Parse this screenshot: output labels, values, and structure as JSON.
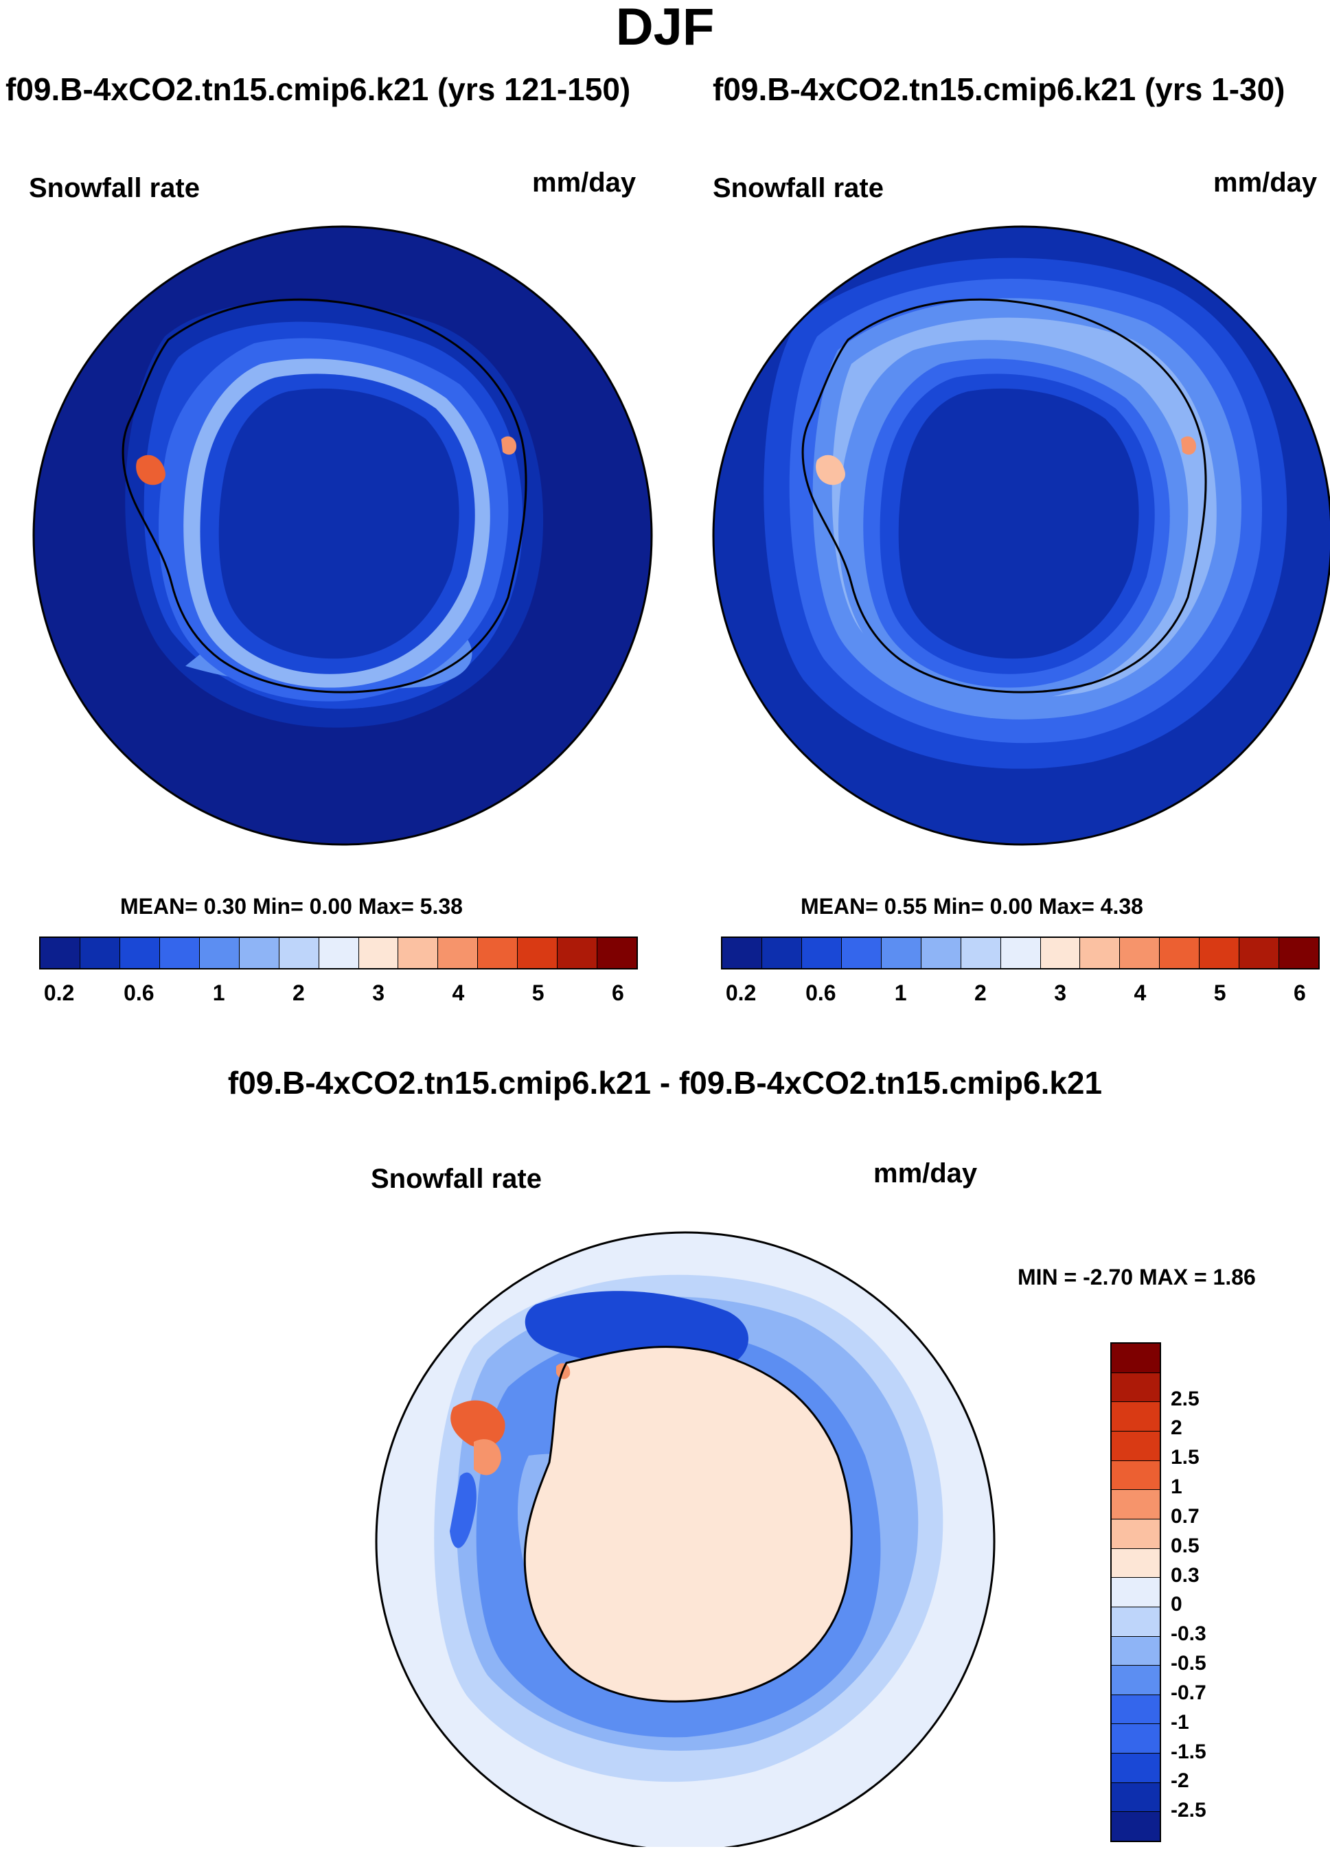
{
  "title": "DJF",
  "colors": {
    "abs_levels": [
      "#0c1f8e",
      "#0d2fae",
      "#1a48d6",
      "#3466ec",
      "#5c8ef2",
      "#8eb4f6",
      "#bed5fa",
      "#e6eefc",
      "#fde6d6",
      "#fbc1a2",
      "#f6946b",
      "#ec6032",
      "#d93a14",
      "#ad1a08",
      "#7e0000"
    ],
    "diff_levels": [
      "#0c1f8e",
      "#0d2fae",
      "#1a48d6",
      "#3466ec",
      "#5c8ef2",
      "#8eb4f6",
      "#bed5fa",
      "#e6eefc",
      "#fde6d6",
      "#fbc1a2",
      "#f6946b",
      "#ec6032",
      "#d93a14",
      "#ad1a08",
      "#7e0000"
    ],
    "coastline": "#000000"
  },
  "chart_data": [
    {
      "type": "heatmap",
      "projection": "south-polar stereographic",
      "title": "f09.B-4xCO2.tn15.cmip6.k21 (yrs 121-150)",
      "variable": "Snowfall rate",
      "units": "mm/day",
      "stats": {
        "mean_label": "MEAN=",
        "mean": "0.30",
        "min_label": "Min=",
        "min": "0.00",
        "max_label": "Max=",
        "max": "5.38"
      },
      "colorbar_ticks": [
        "0.2",
        "0.6",
        "1",
        "2",
        "3",
        "4",
        "5",
        "6"
      ],
      "levels": [
        0.2,
        0.4,
        0.6,
        0.8,
        1,
        1.5,
        2,
        2.5,
        3,
        3.5,
        4,
        4.5,
        5,
        5.5,
        6
      ]
    },
    {
      "type": "heatmap",
      "projection": "south-polar stereographic",
      "title": "f09.B-4xCO2.tn15.cmip6.k21 (yrs 1-30)",
      "variable": "Snowfall rate",
      "units": "mm/day",
      "stats": {
        "mean_label": "MEAN=",
        "mean": "0.55",
        "min_label": "Min=",
        "min": "0.00",
        "max_label": "Max=",
        "max": "4.38"
      },
      "colorbar_ticks": [
        "0.2",
        "0.6",
        "1",
        "2",
        "3",
        "4",
        "5",
        "6"
      ],
      "levels": [
        0.2,
        0.4,
        0.6,
        0.8,
        1,
        1.5,
        2,
        2.5,
        3,
        3.5,
        4,
        4.5,
        5,
        5.5,
        6
      ]
    },
    {
      "type": "heatmap",
      "projection": "south-polar stereographic",
      "title": "f09.B-4xCO2.tn15.cmip6.k21 - f09.B-4xCO2.tn15.cmip6.k21",
      "variable": "Snowfall rate",
      "units": "mm/day",
      "stats": {
        "min_label": "MIN =",
        "min": "-2.70",
        "max_label": "MAX =",
        "max": "1.86"
      },
      "colorbar_ticks": [
        "-2.5",
        "-2",
        "-1.5",
        "-1",
        "-0.7",
        "-0.5",
        "-0.3",
        "0",
        "0.3",
        "0.5",
        "0.7",
        "1",
        "1.5",
        "2",
        "2.5"
      ],
      "levels": [
        -2.5,
        -2,
        -1.5,
        -1,
        -0.7,
        -0.5,
        -0.3,
        0,
        0.3,
        0.5,
        0.7,
        1,
        1.5,
        2,
        2.5
      ]
    }
  ]
}
